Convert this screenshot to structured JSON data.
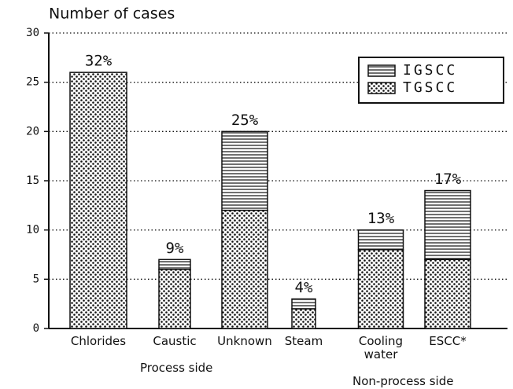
{
  "chart_data": {
    "type": "stacked_bar",
    "y_label": "Number of cases",
    "categories": [
      "Chlorides",
      "Caustic",
      "Unknown",
      "Steam",
      "Cooling water",
      "ESCC*"
    ],
    "series": [
      {
        "name": "TGSCC",
        "pattern": "dots",
        "values": [
          26,
          6,
          12,
          2,
          8,
          7
        ]
      },
      {
        "name": "IGSCC",
        "pattern": "lines",
        "values": [
          0,
          1,
          8,
          1,
          2,
          7
        ]
      }
    ],
    "annotations": [
      "32%",
      "9%",
      "25%",
      "4%",
      "13%",
      "17%"
    ],
    "groups": [
      "Process side",
      "Non-process side"
    ],
    "ylim": [
      0,
      30
    ],
    "yticks": [
      0,
      5,
      10,
      15,
      20,
      25,
      30
    ],
    "grid": true,
    "legend": "upper right"
  }
}
